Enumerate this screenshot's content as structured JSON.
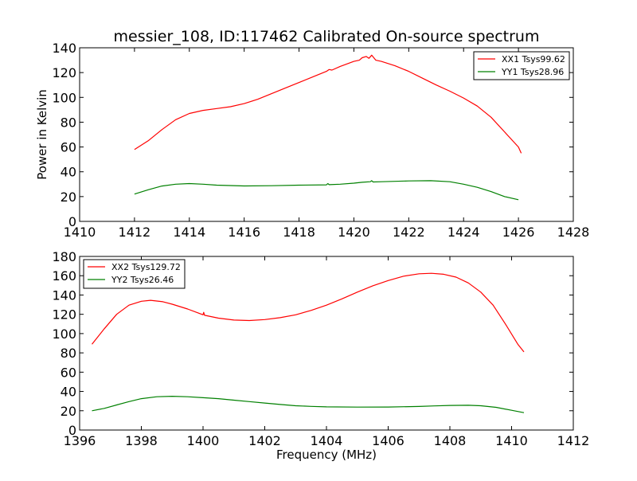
{
  "chart_data": [
    {
      "type": "line",
      "title": "messier_108, ID:117462 Calibrated On-source spectrum",
      "xlabel": "",
      "ylabel": "Power in Kelvin",
      "xlim": [
        1410,
        1428
      ],
      "ylim": [
        0,
        140
      ],
      "xticks": [
        1410,
        1412,
        1414,
        1416,
        1418,
        1420,
        1422,
        1424,
        1426,
        1428
      ],
      "yticks": [
        0,
        20,
        40,
        60,
        80,
        100,
        120,
        140
      ],
      "grid": false,
      "legend_placement": "top-right",
      "series": [
        {
          "name": "XX1 Tsys99.62",
          "color": "#ff0000",
          "points": [
            [
              1412,
              58
            ],
            [
              1412.5,
              65
            ],
            [
              1413,
              74
            ],
            [
              1413.5,
              82
            ],
            [
              1414,
              87
            ],
            [
              1414.5,
              89.5
            ],
            [
              1415,
              91
            ],
            [
              1415.5,
              92.5
            ],
            [
              1416,
              95
            ],
            [
              1416.5,
              98.5
            ],
            [
              1417,
              103
            ],
            [
              1417.5,
              107.5
            ],
            [
              1418,
              112
            ],
            [
              1418.5,
              116.5
            ],
            [
              1419,
              121
            ],
            [
              1419.1,
              122.5
            ],
            [
              1419.2,
              122
            ],
            [
              1419.5,
              125
            ],
            [
              1420,
              129
            ],
            [
              1420.2,
              130
            ],
            [
              1420.3,
              132
            ],
            [
              1420.45,
              133
            ],
            [
              1420.55,
              131.5
            ],
            [
              1420.65,
              134
            ],
            [
              1420.8,
              130
            ],
            [
              1421,
              129
            ],
            [
              1421.5,
              125.5
            ],
            [
              1422,
              121
            ],
            [
              1422.5,
              115.5
            ],
            [
              1423,
              110
            ],
            [
              1423.5,
              105
            ],
            [
              1424,
              99.5
            ],
            [
              1424.5,
              93
            ],
            [
              1425,
              84
            ],
            [
              1425.5,
              72
            ],
            [
              1426,
              60
            ],
            [
              1426.1,
              55
            ]
          ]
        },
        {
          "name": "YY1 Tsys28.96",
          "color": "#008000",
          "points": [
            [
              1412,
              22
            ],
            [
              1412.5,
              25.5
            ],
            [
              1413,
              28.5
            ],
            [
              1413.5,
              30
            ],
            [
              1414,
              30.5
            ],
            [
              1414.5,
              30
            ],
            [
              1415,
              29.2
            ],
            [
              1416,
              28.6
            ],
            [
              1417,
              28.8
            ],
            [
              1418,
              29.2
            ],
            [
              1419,
              29.5
            ],
            [
              1419.05,
              30.5
            ],
            [
              1419.1,
              29.6
            ],
            [
              1419.5,
              30
            ],
            [
              1420,
              30.8
            ],
            [
              1420.3,
              31.5
            ],
            [
              1420.6,
              32
            ],
            [
              1420.65,
              32.8
            ],
            [
              1420.7,
              31.8
            ],
            [
              1421,
              32
            ],
            [
              1422,
              32.6
            ],
            [
              1422.8,
              32.8
            ],
            [
              1423.5,
              32
            ],
            [
              1424,
              30
            ],
            [
              1424.5,
              27.5
            ],
            [
              1425,
              24
            ],
            [
              1425.5,
              20
            ],
            [
              1426,
              17.5
            ]
          ]
        }
      ]
    },
    {
      "type": "line",
      "title": "",
      "xlabel": "Frequency (MHz)",
      "ylabel": "",
      "xlim": [
        1396,
        1412
      ],
      "ylim": [
        0,
        180
      ],
      "xticks": [
        1396,
        1398,
        1400,
        1402,
        1404,
        1406,
        1408,
        1410,
        1412
      ],
      "yticks": [
        0,
        20,
        40,
        60,
        80,
        100,
        120,
        140,
        160,
        180
      ],
      "grid": false,
      "legend_placement": "top-left",
      "series": [
        {
          "name": "XX2 Tsys129.72",
          "color": "#ff0000",
          "points": [
            [
              1396.4,
              89
            ],
            [
              1396.8,
              105
            ],
            [
              1397.2,
              120
            ],
            [
              1397.6,
              129.5
            ],
            [
              1398,
              133.5
            ],
            [
              1398.3,
              134.5
            ],
            [
              1398.7,
              133
            ],
            [
              1399,
              130.5
            ],
            [
              1399.5,
              125.5
            ],
            [
              1400,
              119.5
            ],
            [
              1400.02,
              122
            ],
            [
              1400.05,
              119
            ],
            [
              1400.5,
              116
            ],
            [
              1401,
              114
            ],
            [
              1401.5,
              113.5
            ],
            [
              1402,
              114.5
            ],
            [
              1402.5,
              116.5
            ],
            [
              1403,
              119.5
            ],
            [
              1403.5,
              124
            ],
            [
              1404,
              129.5
            ],
            [
              1404.5,
              136
            ],
            [
              1405,
              143
            ],
            [
              1405.5,
              149.5
            ],
            [
              1406,
              155
            ],
            [
              1406.5,
              159.5
            ],
            [
              1407,
              162
            ],
            [
              1407.4,
              162.5
            ],
            [
              1407.8,
              161.5
            ],
            [
              1408.2,
              158.5
            ],
            [
              1408.6,
              152.5
            ],
            [
              1409,
              143
            ],
            [
              1409.4,
              129.5
            ],
            [
              1409.8,
              110
            ],
            [
              1410.2,
              89
            ],
            [
              1410.4,
              81
            ]
          ]
        },
        {
          "name": "YY2 Tsys26.46",
          "color": "#008000",
          "points": [
            [
              1396.4,
              20
            ],
            [
              1396.8,
              22.5
            ],
            [
              1397.2,
              26
            ],
            [
              1397.6,
              29.5
            ],
            [
              1398,
              32.5
            ],
            [
              1398.5,
              34.5
            ],
            [
              1399,
              35
            ],
            [
              1399.5,
              34.5
            ],
            [
              1400,
              33.5
            ],
            [
              1400.5,
              32.5
            ],
            [
              1401,
              31
            ],
            [
              1401.5,
              29.5
            ],
            [
              1402,
              28
            ],
            [
              1402.5,
              26.5
            ],
            [
              1403,
              25.2
            ],
            [
              1403.5,
              24.5
            ],
            [
              1404,
              24
            ],
            [
              1405,
              23.8
            ],
            [
              1406,
              23.9
            ],
            [
              1407,
              24.4
            ],
            [
              1407.5,
              25
            ],
            [
              1408,
              25.5
            ],
            [
              1408.6,
              25.7
            ],
            [
              1409,
              25.2
            ],
            [
              1409.5,
              23.5
            ],
            [
              1410,
              20.5
            ],
            [
              1410.4,
              18
            ]
          ]
        }
      ]
    }
  ]
}
